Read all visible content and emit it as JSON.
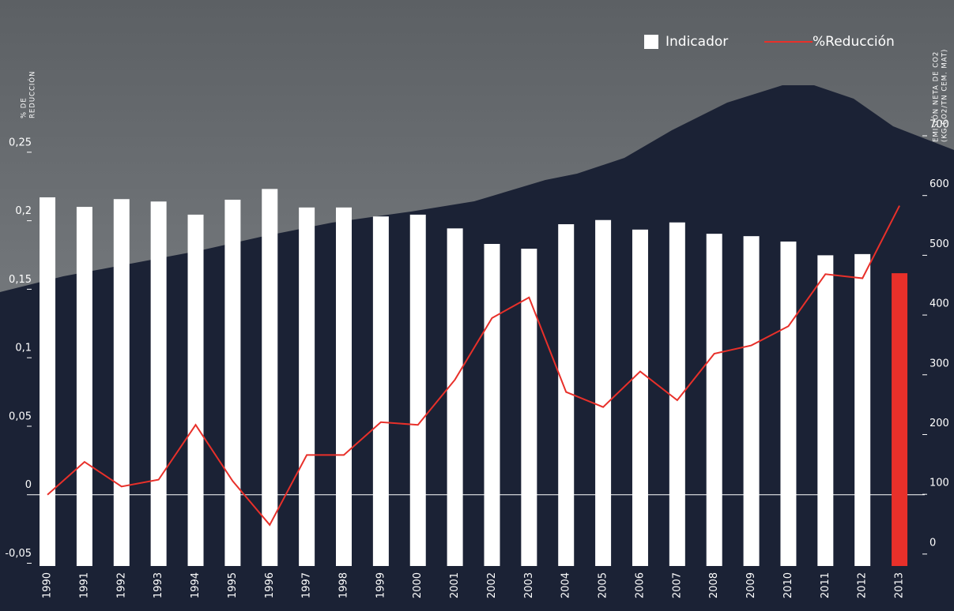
{
  "chart_data": {
    "type": "bar-line",
    "y_label": [
      "% de",
      "reducción"
    ],
    "y2_label": [
      "emisión neta de co2",
      "(kg co2/tn cem. mat)"
    ],
    "categories": [
      "1990",
      "1991",
      "1992",
      "1993",
      "1994",
      "1995",
      "1996",
      "1997",
      "1998",
      "1999",
      "2000",
      "2001",
      "2002",
      "2003",
      "2004",
      "2005",
      "2006",
      "2007",
      "2008",
      "2009",
      "2010",
      "2011",
      "2012",
      "2013"
    ],
    "series": [
      {
        "name": "Indicador",
        "type": "bar",
        "axis": "y2",
        "color": "#ffffff",
        "colors": [
          "#ffffff",
          "#ffffff",
          "#ffffff",
          "#ffffff",
          "#ffffff",
          "#ffffff",
          "#ffffff",
          "#ffffff",
          "#ffffff",
          "#ffffff",
          "#ffffff",
          "#ffffff",
          "#ffffff",
          "#ffffff",
          "#ffffff",
          "#ffffff",
          "#ffffff",
          "#ffffff",
          "#ffffff",
          "#ffffff",
          "#ffffff",
          "#ffffff",
          "#ffffff",
          "#e8302a"
        ],
        "values": [
          597,
          581,
          594,
          590,
          568,
          593,
          611,
          580,
          580,
          565,
          568,
          545,
          519,
          511,
          552,
          559,
          543,
          555,
          536,
          532,
          523,
          500,
          502,
          470
        ]
      },
      {
        "name": "%Reducción",
        "type": "line",
        "axis": "y",
        "color": "#e8302a",
        "values": [
          0,
          0.024,
          0.006,
          0.011,
          0.051,
          0.01,
          -0.022,
          0.029,
          0.029,
          0.053,
          0.051,
          0.084,
          0.129,
          0.144,
          0.075,
          0.064,
          0.09,
          0.069,
          0.103,
          0.109,
          0.123,
          0.161,
          0.158,
          0.211
        ]
      }
    ],
    "ylim": [
      -0.052,
      0.262
    ],
    "yticks": [
      {
        "value": -0.05,
        "label": "-0,05"
      },
      0,
      {
        "value": 0.05,
        "label": "0,05"
      },
      {
        "value": 0.1,
        "label": "0,1"
      },
      {
        "value": 0.15,
        "label": "0,15"
      },
      {
        "value": 0.2,
        "label": "0,2"
      },
      {
        "value": 0.25,
        "label": "0,25"
      }
    ],
    "y2lim": [
      -20,
      700
    ],
    "y2ticks": [
      0,
      100,
      200,
      300,
      400,
      500,
      600,
      700
    ],
    "zero_line": true,
    "legend": "top-right"
  }
}
